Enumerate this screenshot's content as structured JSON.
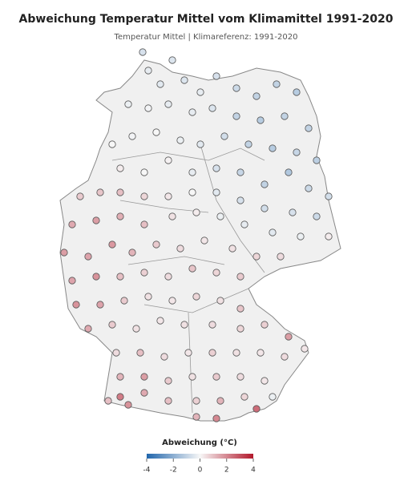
{
  "title": "Abweichung Temperatur Mittel vom Klimamittel 1991-2020",
  "subtitle": "Temperatur Mittel | Klimareferenz: 1991-2020",
  "stations": {
    "values": [
      -0.6,
      -0.3,
      -0.4,
      -0.5,
      -0.5,
      -0.3,
      -0.6,
      -0.8,
      -1.0,
      -1.0,
      -1.2,
      -0.2,
      -0.1,
      -0.3,
      -0.3,
      -0.5,
      -1.0,
      -1.2,
      -1.0,
      -1.0,
      0.0,
      -0.1,
      0.0,
      -0.2,
      -0.4,
      -0.7,
      -1.0,
      -1.2,
      -0.9,
      -1.1,
      0.2,
      0.0,
      0.1,
      -0.3,
      -0.6,
      -0.9,
      -1.0,
      -1.3,
      -0.8,
      -0.7,
      0.8,
      0.9,
      1.0,
      0.6,
      0.3,
      0.0,
      -0.4,
      -0.6,
      -0.7,
      -0.6,
      -0.8,
      1.4,
      1.6,
      1.3,
      1.0,
      0.4,
      0.2,
      -0.2,
      -0.3,
      -0.4,
      -0.2,
      0.2,
      1.6,
      1.5,
      1.7,
      1.2,
      0.8,
      0.5,
      0.3,
      0.4,
      0.6,
      0.5,
      1.5,
      1.8,
      1.0,
      0.7,
      0.5,
      0.9,
      0.6,
      0.8,
      1.8,
      1.5,
      0.8,
      0.4,
      0.3,
      0.6,
      0.4,
      0.9,
      1.4,
      0.8,
      0.4,
      0.3,
      0.4,
      0.5,
      0.6,
      0.7,
      1.6,
      0.5,
      1.0,
      0.5,
      0.3,
      0.7,
      0.4,
      0.3,
      0.5,
      0.3,
      1.2,
      1.6,
      0.8,
      0.4,
      0.8,
      0.5,
      0.3,
      1.0,
      2.2,
      1.4,
      1.0,
      0.7,
      1.2,
      0.6,
      -0.2,
      1.8,
      1.2,
      2.0,
      2.5
    ]
  },
  "legend": {
    "title": "Abweichung (°C)",
    "lim": [
      -4,
      4
    ],
    "ticks": [
      -4,
      -2,
      0,
      2,
      4
    ],
    "colors": [
      "#2166ac",
      "#f7f7f7",
      "#b2182b"
    ]
  }
}
